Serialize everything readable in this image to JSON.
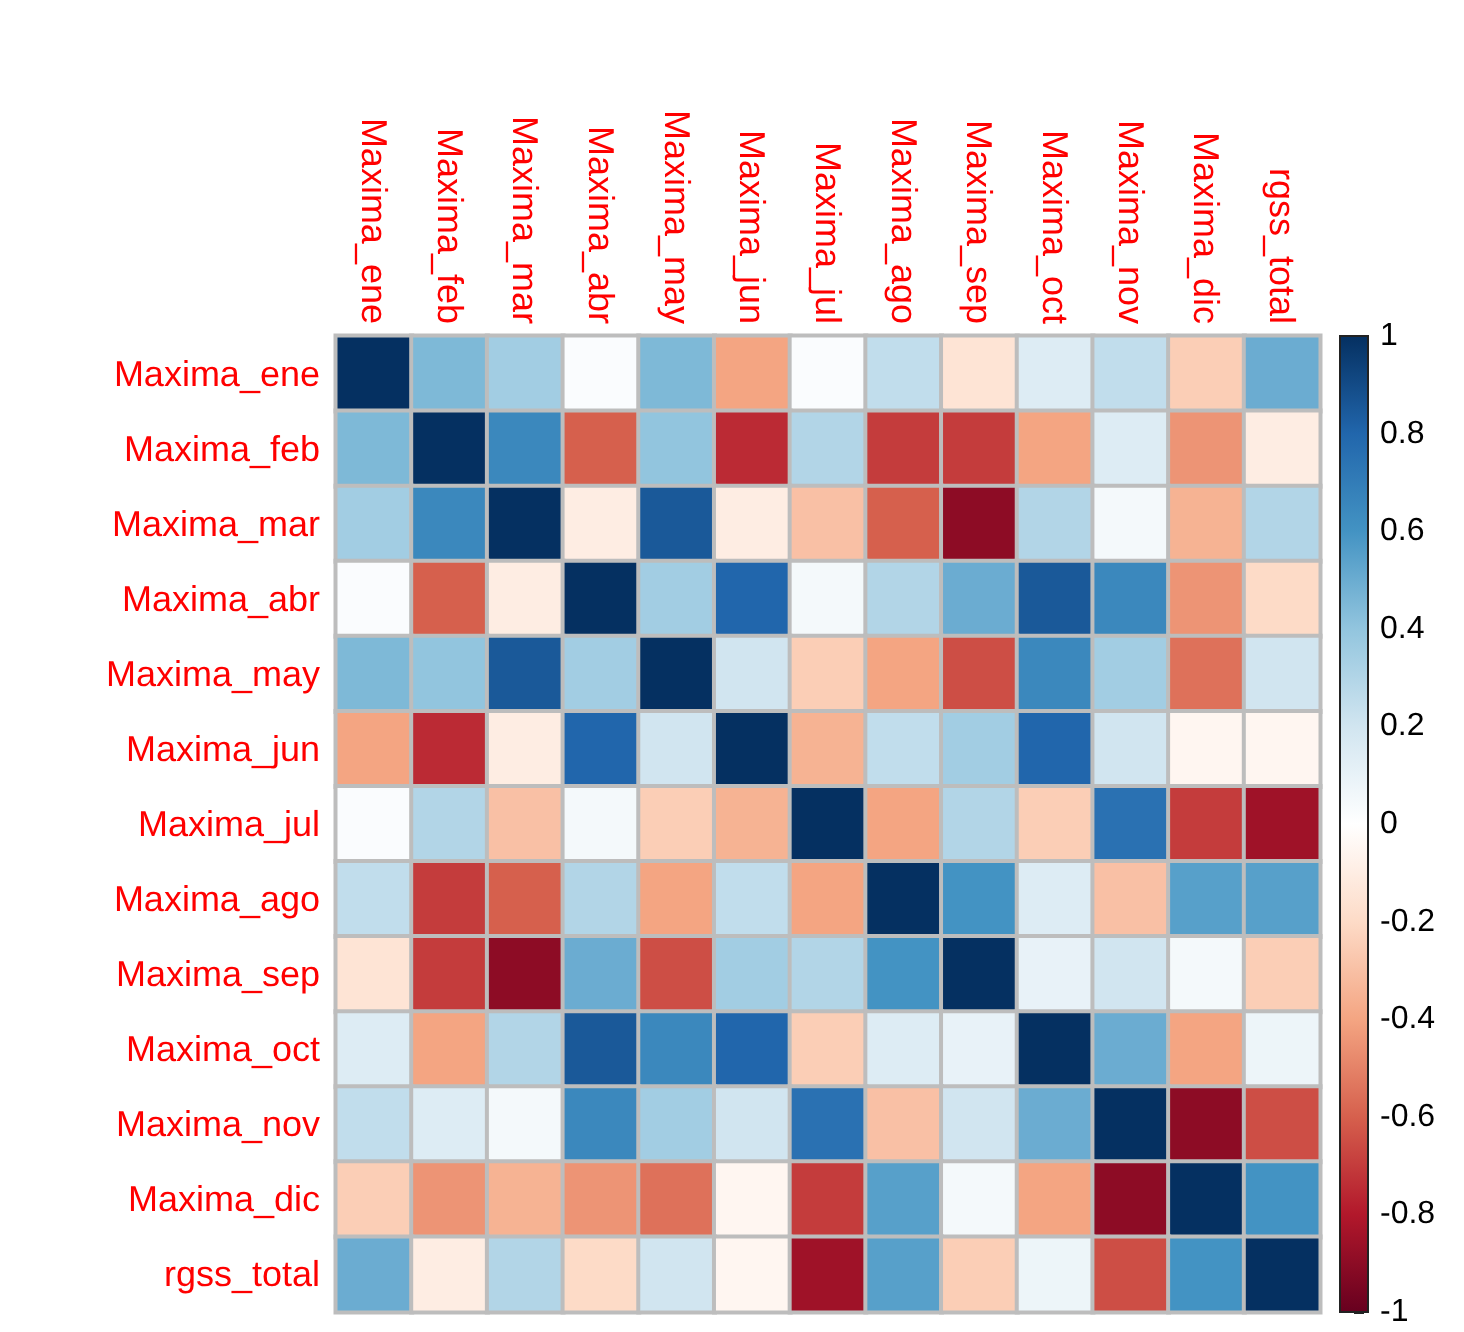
{
  "chart_data": {
    "type": "heatmap",
    "categories": [
      "Maxima_ene",
      "Maxima_feb",
      "Maxima_mar",
      "Maxima_abr",
      "Maxima_may",
      "Maxima_jun",
      "Maxima_jul",
      "Maxima_ago",
      "Maxima_sep",
      "Maxima_oct",
      "Maxima_nov",
      "Maxima_dic",
      "rgss_total"
    ],
    "y_categories": [
      "Maxima_ene",
      "Maxima_feb",
      "Maxima_mar",
      "Maxima_abr",
      "Maxima_may",
      "Maxima_jun",
      "Maxima_jul",
      "Maxima_ago",
      "Maxima_sep",
      "Maxima_oct",
      "Maxima_nov",
      "Maxima_dic",
      "rgss_total"
    ],
    "cells": [
      [
        1,
        0.45,
        0.35,
        0.02,
        0.45,
        -0.4,
        0.02,
        0.25,
        -0.15,
        0.15,
        0.25,
        -0.25,
        0.5
      ],
      [
        0.45,
        1,
        0.65,
        -0.6,
        0.4,
        -0.75,
        0.3,
        -0.7,
        -0.7,
        -0.4,
        0.15,
        -0.45,
        -0.1
      ],
      [
        0.35,
        0.65,
        1,
        -0.1,
        0.85,
        -0.1,
        -0.3,
        -0.6,
        -0.9,
        0.3,
        0.05,
        -0.35,
        0.3
      ],
      [
        0.02,
        -0.6,
        -0.1,
        1,
        0.35,
        0.8,
        0.05,
        0.3,
        0.5,
        0.85,
        0.65,
        -0.45,
        -0.2
      ],
      [
        0.45,
        0.4,
        0.85,
        0.35,
        1,
        0.2,
        -0.25,
        -0.4,
        -0.65,
        0.65,
        0.35,
        -0.55,
        0.2
      ],
      [
        -0.4,
        -0.75,
        -0.1,
        0.8,
        0.2,
        1,
        -0.35,
        0.25,
        0.35,
        0.8,
        0.2,
        -0.05,
        -0.05
      ],
      [
        0.02,
        0.3,
        -0.3,
        0.05,
        -0.25,
        -0.35,
        1,
        -0.4,
        0.3,
        -0.25,
        0.75,
        -0.7,
        -0.85
      ],
      [
        0.25,
        -0.7,
        -0.6,
        0.3,
        -0.4,
        0.25,
        -0.4,
        1,
        0.6,
        0.15,
        -0.3,
        0.55,
        0.55
      ],
      [
        -0.15,
        -0.7,
        -0.9,
        0.5,
        -0.65,
        0.35,
        0.3,
        0.6,
        1,
        0.1,
        0.2,
        0.05,
        -0.25
      ],
      [
        0.15,
        -0.4,
        0.3,
        0.85,
        0.65,
        0.8,
        -0.25,
        0.15,
        0.1,
        1,
        0.5,
        -0.4,
        0.08
      ],
      [
        0.25,
        0.15,
        0.05,
        0.65,
        0.35,
        0.2,
        0.75,
        -0.3,
        0.2,
        0.5,
        1,
        -0.9,
        -0.65
      ],
      [
        -0.25,
        -0.45,
        -0.35,
        -0.45,
        -0.55,
        -0.05,
        -0.7,
        0.55,
        0.05,
        -0.4,
        -0.9,
        1,
        0.6
      ],
      [
        0.5,
        -0.1,
        0.3,
        -0.2,
        0.2,
        -0.05,
        -0.85,
        0.55,
        -0.25,
        0.08,
        -0.65,
        0.6,
        1
      ]
    ],
    "clim": [
      -1,
      1
    ],
    "cticks": [
      -1,
      -0.8,
      -0.6,
      -0.4,
      -0.2,
      0,
      0.2,
      0.4,
      0.6,
      0.8,
      1
    ]
  }
}
